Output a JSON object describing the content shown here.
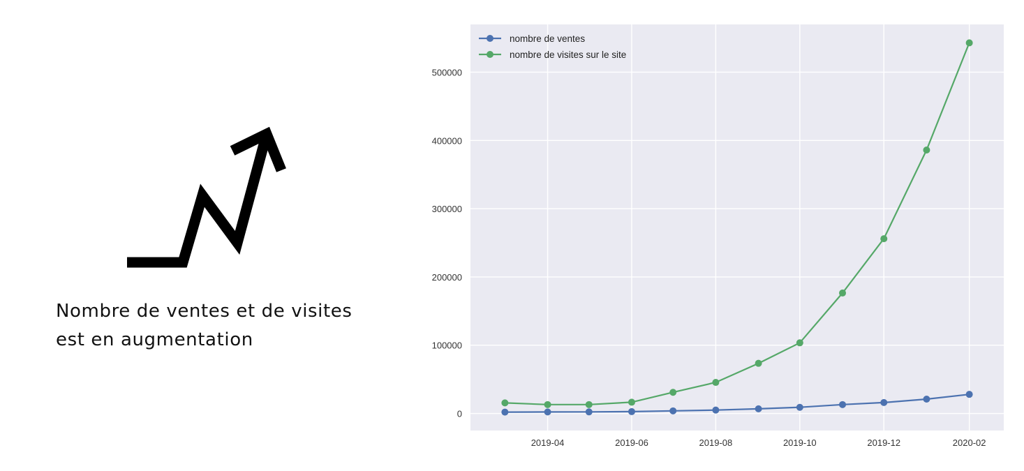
{
  "caption": {
    "line1": "Nombre de ventes et de visites",
    "line2": "est en augmentation"
  },
  "icon": {
    "name": "trend-up-arrow-icon",
    "color": "#000000"
  },
  "chart_data": {
    "type": "line",
    "title": "",
    "xlabel": "",
    "ylabel": "",
    "x": [
      "2019-03",
      "2019-04",
      "2019-05",
      "2019-06",
      "2019-07",
      "2019-08",
      "2019-09",
      "2019-10",
      "2019-11",
      "2019-12",
      "2020-01",
      "2020-02"
    ],
    "series": [
      {
        "name": "nombre de ventes",
        "color": "#4c72b0",
        "values": [
          2000,
          2200,
          2300,
          2700,
          3800,
          5000,
          6800,
          9000,
          13000,
          16000,
          21000,
          28000
        ]
      },
      {
        "name": "nombre de visites sur le site",
        "color": "#55a868",
        "values": [
          15500,
          13000,
          13000,
          16500,
          31000,
          45500,
          73500,
          103500,
          176500,
          256000,
          386000,
          543000
        ]
      }
    ],
    "xticks": [
      "2019-04",
      "2019-06",
      "2019-08",
      "2019-10",
      "2019-12",
      "2020-02"
    ],
    "yticks": [
      0,
      100000,
      200000,
      300000,
      400000,
      500000
    ],
    "ylim": [
      -25000,
      570000
    ],
    "grid": true,
    "background": "#eaeaf2",
    "legend": "top-left"
  }
}
